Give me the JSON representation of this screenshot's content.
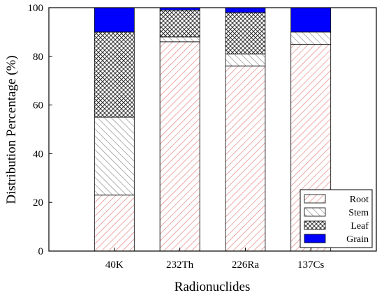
{
  "chart_data": {
    "type": "bar",
    "stacked": true,
    "title": "",
    "xlabel": "Radionuclides",
    "ylabel": "Distribution Percentage (%)",
    "ylim": [
      0,
      100
    ],
    "yticks": [
      0,
      20,
      40,
      60,
      80,
      100
    ],
    "categories": [
      "40K",
      "232Th",
      "226Ra",
      "137Cs"
    ],
    "series": [
      {
        "name": "Root",
        "values": [
          23,
          86,
          76,
          85
        ],
        "color": "#e07070",
        "pattern": "diagonal-hatch"
      },
      {
        "name": "Stem",
        "values": [
          32,
          2,
          5,
          5
        ],
        "color": "#808080",
        "pattern": "back-diagonal-hatch"
      },
      {
        "name": "Leaf",
        "values": [
          35,
          11,
          17,
          0
        ],
        "color": "#333333",
        "pattern": "crosshatch"
      },
      {
        "name": "Grain",
        "values": [
          10,
          1,
          2,
          10
        ],
        "color": "#0000ff",
        "pattern": "solid"
      }
    ],
    "grid": false,
    "legend_position": "bottom-right"
  }
}
